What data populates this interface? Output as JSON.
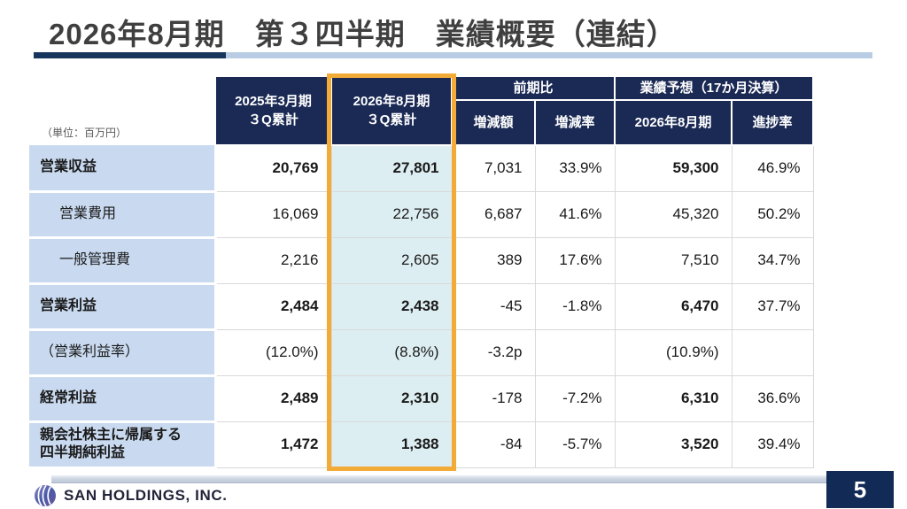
{
  "slide": {
    "title": "2026年8月期　第３四半期　業績概要（連結）",
    "page_number": "5",
    "company": "SAN HOLDINGS, INC."
  },
  "table": {
    "unit_label": "（単位：百万円）",
    "headers": {
      "prev_period": "2025年3月期\n３Q累計",
      "curr_period": "2026年8月期\n３Q累計",
      "yoy_group": "前期比",
      "yoy_amount": "増減額",
      "yoy_rate": "増減率",
      "forecast_group": "業績予想（17か月決算）",
      "forecast_period": "2026年8月期",
      "progress_rate": "進捗率"
    },
    "rows": [
      {
        "label": "営業収益",
        "indent": false,
        "bold": true,
        "values": [
          "20,769",
          "27,801",
          "7,031",
          "33.9%",
          "59,300",
          "46.9%"
        ]
      },
      {
        "label": "営業費用",
        "indent": true,
        "bold": false,
        "values": [
          "16,069",
          "22,756",
          "6,687",
          "41.6%",
          "45,320",
          "50.2%"
        ]
      },
      {
        "label": "一般管理費",
        "indent": true,
        "bold": false,
        "values": [
          "2,216",
          "2,605",
          "389",
          "17.6%",
          "7,510",
          "34.7%"
        ]
      },
      {
        "label": "営業利益",
        "indent": false,
        "bold": true,
        "values": [
          "2,484",
          "2,438",
          "-45",
          "-1.8%",
          "6,470",
          "37.7%"
        ]
      },
      {
        "label": "（営業利益率）",
        "indent": false,
        "bold": false,
        "values": [
          "(12.0%)",
          "(8.8%)",
          "-3.2p",
          "",
          "(10.9%)",
          ""
        ]
      },
      {
        "label": "経常利益",
        "indent": false,
        "bold": true,
        "values": [
          "2,489",
          "2,310",
          "-178",
          "-7.2%",
          "6,310",
          "36.6%"
        ]
      },
      {
        "label": "親会社株主に帰属する\n四半期純利益",
        "indent": false,
        "bold": true,
        "values": [
          "1,472",
          "1,388",
          "-84",
          "-5.7%",
          "3,520",
          "39.4%"
        ]
      }
    ]
  },
  "colors": {
    "header_navy": "#1b2a55",
    "highlight_orange": "#f3ab38",
    "label_blue": "#c9daf0",
    "highlight_cell": "#ddeef2",
    "underline_navy": "#17365d",
    "underline_light": "#b8cce4",
    "footer_bar": "#c5cfdd",
    "page_box_navy": "#122a56"
  }
}
